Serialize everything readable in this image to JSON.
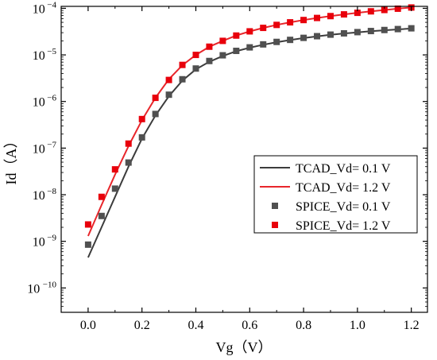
{
  "chart_data": {
    "type": "line",
    "xlabel": "Vg（V）",
    "ylabel": "Id（A）",
    "xlim": [
      -0.1,
      1.26
    ],
    "ylim": [
      3e-11,
      0.00011
    ],
    "yscale": "log",
    "x_ticks": [
      0.0,
      0.2,
      0.4,
      0.6,
      0.8,
      1.0,
      1.2
    ],
    "x_tick_labels": [
      "0.0",
      "0.2",
      "0.4",
      "0.6",
      "0.8",
      "1.0",
      "1.2"
    ],
    "y_ticks": [
      1e-10,
      1e-09,
      1e-08,
      1e-07,
      1e-06,
      1e-05,
      0.0001
    ],
    "y_tick_labels": [
      {
        "base": "10",
        "exp": "-10"
      },
      {
        "base": "10",
        "exp": "-9"
      },
      {
        "base": "10",
        "exp": "-8"
      },
      {
        "base": "10",
        "exp": "-7"
      },
      {
        "base": "10",
        "exp": "-6"
      },
      {
        "base": "10",
        "exp": "-5"
      },
      {
        "base": "10",
        "exp": "-4"
      }
    ],
    "grid": false,
    "legend_position": "center-right",
    "series": [
      {
        "name": "TCAD_Vd= 0.1 V",
        "kind": "line",
        "color": "#3c3c3c",
        "x": [
          0.0,
          0.05,
          0.1,
          0.15,
          0.2,
          0.25,
          0.3,
          0.35,
          0.4,
          0.45,
          0.5,
          0.55,
          0.6,
          0.65,
          0.7,
          0.75,
          0.8,
          0.85,
          0.9,
          0.95,
          1.0,
          1.05,
          1.1,
          1.15,
          1.2
        ],
        "y": [
          4.5e-10,
          2e-09,
          9e-09,
          4e-08,
          1.6e-07,
          5e-07,
          1.3e-06,
          2.8e-06,
          4.9e-06,
          7.1e-06,
          9.5e-06,
          1.2e-05,
          1.43e-05,
          1.65e-05,
          1.87e-05,
          2.08e-05,
          2.3e-05,
          2.5e-05,
          2.7e-05,
          2.88e-05,
          3.05e-05,
          3.22e-05,
          3.38e-05,
          3.53e-05,
          3.68e-05
        ]
      },
      {
        "name": "TCAD_Vd= 1.2 V",
        "kind": "line",
        "color": "#e8262b",
        "x": [
          0.0,
          0.05,
          0.1,
          0.15,
          0.2,
          0.25,
          0.3,
          0.35,
          0.4,
          0.45,
          0.5,
          0.55,
          0.6,
          0.65,
          0.7,
          0.75,
          0.8,
          0.85,
          0.9,
          0.95,
          1.0,
          1.05,
          1.1,
          1.15,
          1.2
        ],
        "y": [
          1.3e-09,
          6e-09,
          2.7e-08,
          1.1e-07,
          4e-07,
          1.2e-06,
          3e-06,
          6e-06,
          1e-05,
          1.5e-05,
          2e-05,
          2.6e-05,
          3.2e-05,
          3.8e-05,
          4.4e-05,
          5e-05,
          5.6e-05,
          6.2e-05,
          6.8e-05,
          7.4e-05,
          8e-05,
          8.6e-05,
          9.2e-05,
          9.8e-05,
          0.000104
        ]
      },
      {
        "name": "SPICE_Vd= 0.1 V",
        "kind": "scatter",
        "color": "#505050",
        "x": [
          0.0,
          0.05,
          0.1,
          0.15,
          0.2,
          0.25,
          0.3,
          0.35,
          0.4,
          0.45,
          0.5,
          0.55,
          0.6,
          0.65,
          0.7,
          0.75,
          0.8,
          0.85,
          0.9,
          0.95,
          1.0,
          1.05,
          1.1,
          1.15,
          1.2
        ],
        "y": [
          8.5e-10,
          3.5e-09,
          1.35e-08,
          4.9e-08,
          1.7e-07,
          5.4e-07,
          1.4e-06,
          3e-06,
          5.1e-06,
          7.4e-06,
          9.8e-06,
          1.22e-05,
          1.45e-05,
          1.68e-05,
          1.9e-05,
          2.1e-05,
          2.32e-05,
          2.52e-05,
          2.72e-05,
          2.9e-05,
          3.08e-05,
          3.25e-05,
          3.42e-05,
          3.58e-05,
          3.72e-05
        ]
      },
      {
        "name": "SPICE_Vd= 1.2 V",
        "kind": "scatter",
        "color": "#e8000b",
        "x": [
          0.0,
          0.05,
          0.1,
          0.15,
          0.2,
          0.25,
          0.3,
          0.35,
          0.4,
          0.45,
          0.5,
          0.55,
          0.6,
          0.65,
          0.7,
          0.75,
          0.8,
          0.85,
          0.9,
          0.95,
          1.0,
          1.05,
          1.1,
          1.15,
          1.2
        ],
        "y": [
          2.3e-09,
          9e-09,
          3.5e-08,
          1.25e-07,
          4.2e-07,
          1.2e-06,
          2.9e-06,
          6.1e-06,
          1e-05,
          1.5e-05,
          2e-05,
          2.6e-05,
          3.2e-05,
          3.8e-05,
          4.4e-05,
          5e-05,
          5.6e-05,
          6.2e-05,
          6.8e-05,
          7.4e-05,
          8e-05,
          8.6e-05,
          9.2e-05,
          9.8e-05,
          0.000104
        ]
      }
    ]
  }
}
